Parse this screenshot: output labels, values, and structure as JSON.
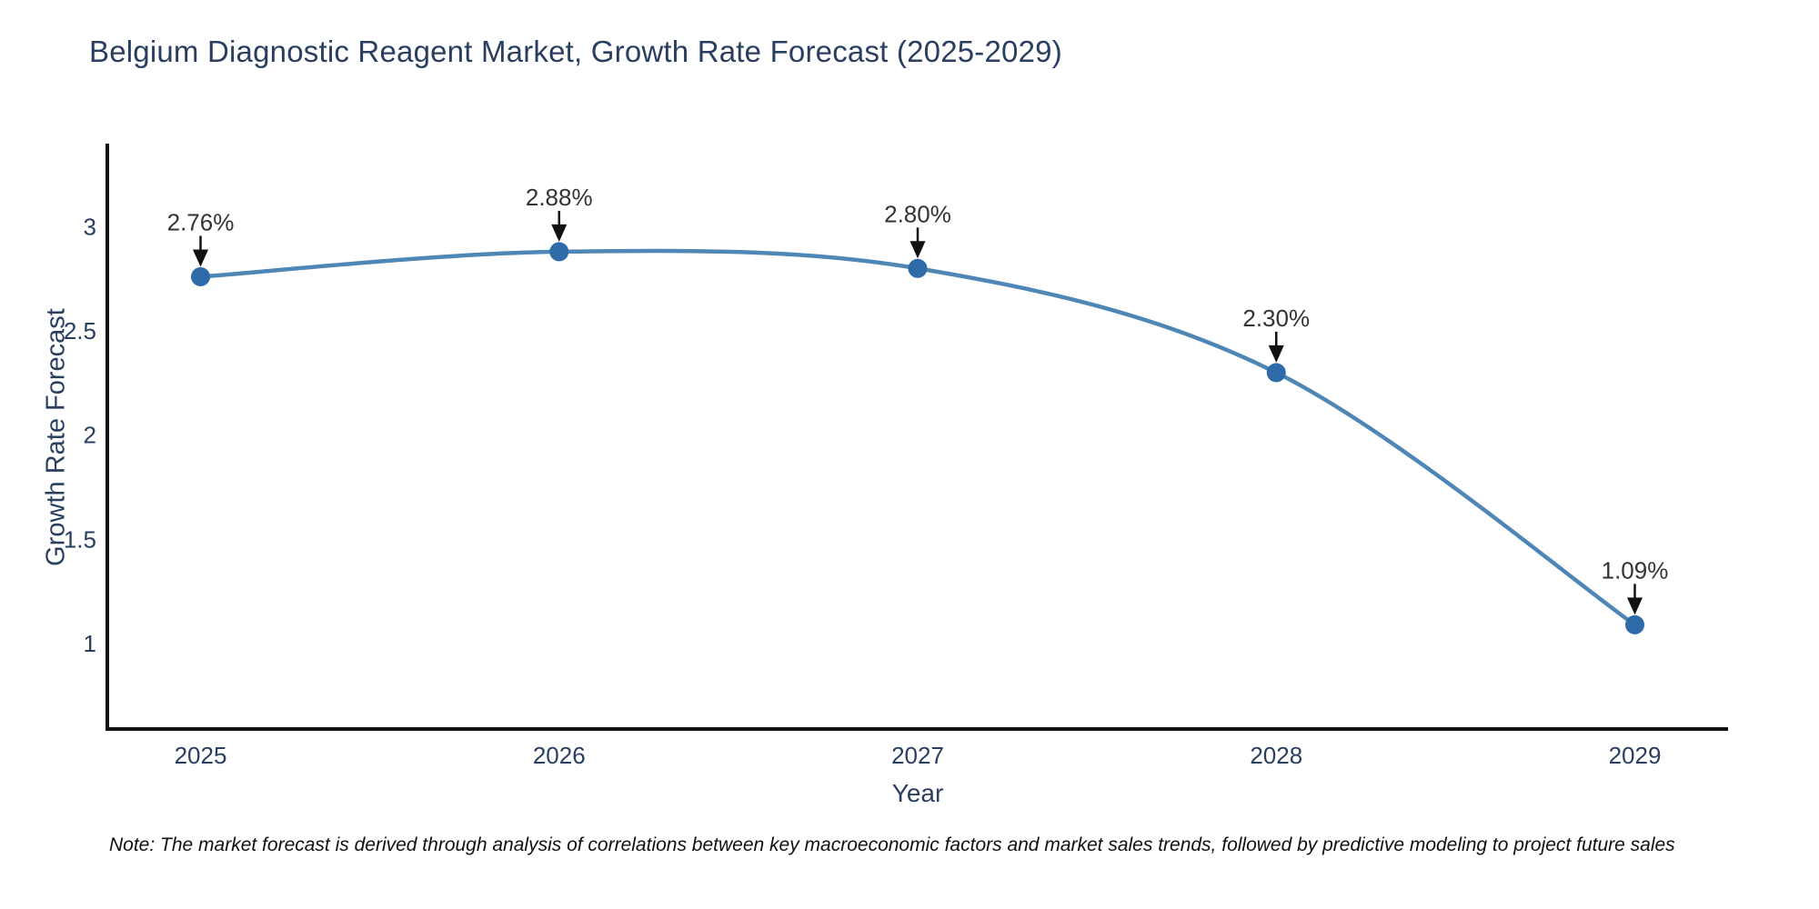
{
  "chart_data": {
    "type": "line",
    "title": "Belgium Diagnostic Reagent Market, Growth Rate Forecast (2025-2029)",
    "xlabel": "Year",
    "ylabel": "Growth Rate Forecast",
    "categories": [
      2025,
      2026,
      2027,
      2028,
      2029
    ],
    "series": [
      {
        "name": "Growth Rate Forecast",
        "values": [
          2.76,
          2.88,
          2.8,
          2.3,
          1.09
        ],
        "point_labels": [
          "2.76%",
          "2.88%",
          "2.80%",
          "2.30%",
          "1.09%"
        ]
      }
    ],
    "yticks": [
      1,
      1.5,
      2,
      2.5,
      3
    ],
    "xlim": [
      2024.74,
      2029.26
    ],
    "ylim": [
      0.59,
      3.39
    ],
    "line_shape": "spline",
    "grid": false,
    "legend": "none",
    "colors": {
      "line": "#4e86b5",
      "marker": "#2f6ba8",
      "axis": "#111111",
      "tick_text": "#2a3f5f",
      "annotation_text": "#333333",
      "arrow": "#111111",
      "title_text": "#2a3f5f",
      "background": "#ffffff"
    },
    "note": "Note: The market forecast is derived through analysis of correlations between key macroeconomic factors and market sales trends, followed by predictive modeling to project future sales"
  }
}
